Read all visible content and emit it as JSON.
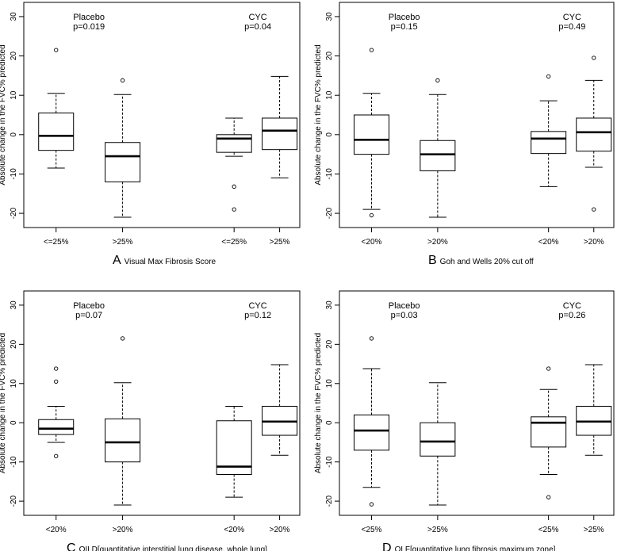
{
  "chart_data": [
    {
      "type": "boxplot",
      "panel_letter": "A",
      "caption": "Visual Max Fibrosis Score",
      "ylabel": "Absolute change in the FVC% predicted",
      "ylim": [
        -22,
        32
      ],
      "yticks": [
        -20,
        -10,
        0,
        10,
        20,
        30
      ],
      "groups": [
        {
          "name": "Placebo",
          "pvalue": "p=0.019"
        },
        {
          "name": "CYC",
          "pvalue": "p=0.04"
        }
      ],
      "boxes": [
        {
          "label": "<=25%",
          "group": "Placebo",
          "whisker_low": -8.5,
          "q1": -4,
          "median": -0.3,
          "q3": 5.5,
          "whisker_high": 10.5,
          "outliers": [
            21.5
          ]
        },
        {
          "label": ">25%",
          "group": "Placebo",
          "whisker_low": -21,
          "q1": -12,
          "median": -5.5,
          "q3": -2,
          "whisker_high": 10.2,
          "outliers": [
            13.8
          ]
        },
        {
          "label": "<=25%",
          "group": "CYC",
          "whisker_low": -5.5,
          "q1": -4.5,
          "median": -1,
          "q3": 0,
          "whisker_high": 4.2,
          "outliers": [
            -13.2,
            -19
          ]
        },
        {
          "label": ">25%",
          "group": "CYC",
          "whisker_low": -11,
          "q1": -3.8,
          "median": 1,
          "q3": 4.2,
          "whisker_high": 14.8,
          "outliers": []
        }
      ]
    },
    {
      "type": "boxplot",
      "panel_letter": "B",
      "caption": "Goh and Wells 20% cut off",
      "ylabel": "Absolute change in the FVC% predicted",
      "ylim": [
        -22,
        32
      ],
      "yticks": [
        -20,
        -10,
        0,
        10,
        20,
        30
      ],
      "groups": [
        {
          "name": "Placebo",
          "pvalue": "p=0.15"
        },
        {
          "name": "CYC",
          "pvalue": "p=0.49"
        }
      ],
      "boxes": [
        {
          "label": "<20%",
          "group": "Placebo",
          "whisker_low": -19,
          "q1": -5,
          "median": -1.3,
          "q3": 5,
          "whisker_high": 10.5,
          "outliers": [
            21.5,
            -20.5
          ]
        },
        {
          "label": ">20%",
          "group": "Placebo",
          "whisker_low": -21,
          "q1": -9.2,
          "median": -5,
          "q3": -1.5,
          "whisker_high": 10.2,
          "outliers": [
            13.8
          ]
        },
        {
          "label": "<20%",
          "group": "CYC",
          "whisker_low": -13.2,
          "q1": -4.8,
          "median": -1,
          "q3": 0.8,
          "whisker_high": 8.6,
          "outliers": [
            14.8
          ]
        },
        {
          "label": ">20%",
          "group": "CYC",
          "whisker_low": -8.3,
          "q1": -4.2,
          "median": 0.6,
          "q3": 4.2,
          "whisker_high": 13.8,
          "outliers": [
            19.5,
            -19
          ]
        }
      ]
    },
    {
      "type": "boxplot",
      "panel_letter": "C",
      "caption": "QILD[quantitative interstitial lung disease, whole lung]",
      "ylabel": "Absolute change in the FVC% predicted",
      "ylim": [
        -22,
        32
      ],
      "yticks": [
        -20,
        -10,
        0,
        10,
        20,
        30
      ],
      "groups": [
        {
          "name": "Placebo",
          "pvalue": "p=0.07"
        },
        {
          "name": "CYC",
          "pvalue": "p=0.12"
        }
      ],
      "boxes": [
        {
          "label": "<20%",
          "group": "Placebo",
          "whisker_low": -5,
          "q1": -3,
          "median": -1.5,
          "q3": 0.8,
          "whisker_high": 4.2,
          "outliers": [
            13.8,
            10.5,
            -8.5
          ]
        },
        {
          "label": ">20%",
          "group": "Placebo",
          "whisker_low": -21,
          "q1": -10,
          "median": -5,
          "q3": 1,
          "whisker_high": 10.2,
          "outliers": [
            21.5
          ]
        },
        {
          "label": "<20%",
          "group": "CYC",
          "whisker_low": -19,
          "q1": -13.2,
          "median": -11.2,
          "q3": 0.5,
          "whisker_high": 4.2,
          "outliers": []
        },
        {
          "label": ">20%",
          "group": "CYC",
          "whisker_low": -8.3,
          "q1": -3.2,
          "median": 0.3,
          "q3": 4.2,
          "whisker_high": 14.8,
          "outliers": []
        }
      ]
    },
    {
      "type": "boxplot",
      "panel_letter": "D",
      "caption": "QLF[quantitative lung fibrosis maximum zone]",
      "ylabel": "Absolute change in the FVC% predicted",
      "ylim": [
        -22,
        32
      ],
      "yticks": [
        -20,
        -10,
        0,
        10,
        20,
        30
      ],
      "groups": [
        {
          "name": "Placebo",
          "pvalue": "p=0.03"
        },
        {
          "name": "CYC",
          "pvalue": "p=0.26"
        }
      ],
      "boxes": [
        {
          "label": "<25%",
          "group": "Placebo",
          "whisker_low": -16.5,
          "q1": -7,
          "median": -2,
          "q3": 2,
          "whisker_high": 13.8,
          "outliers": [
            21.5,
            -20.8
          ]
        },
        {
          "label": ">25%",
          "group": "Placebo",
          "whisker_low": -21,
          "q1": -8.5,
          "median": -4.8,
          "q3": 0,
          "whisker_high": 10.2,
          "outliers": []
        },
        {
          "label": "<25%",
          "group": "CYC",
          "whisker_low": -13.2,
          "q1": -6.2,
          "median": 0,
          "q3": 1.5,
          "whisker_high": 8.5,
          "outliers": [
            13.8,
            -19
          ]
        },
        {
          "label": ">25%",
          "group": "CYC",
          "whisker_low": -8.3,
          "q1": -3.2,
          "median": 0.3,
          "q3": 4.2,
          "whisker_high": 14.8,
          "outliers": []
        }
      ]
    }
  ]
}
